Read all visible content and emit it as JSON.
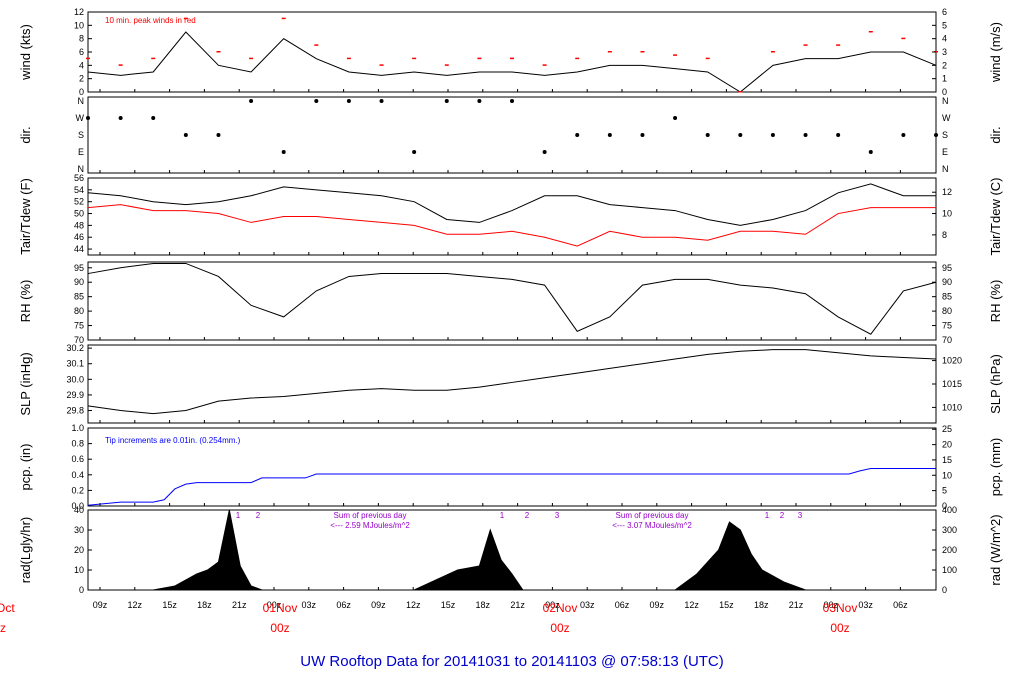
{
  "title": "UW Rooftop Data for 20141031  to  20141103 @ 07:58:13  (UTC)",
  "colors": {
    "frame": "#000000",
    "red": "#ff0000",
    "blue": "#0000ff",
    "purple": "#9900cc",
    "title": "#0000cc"
  },
  "chart_data": [
    {
      "type": "line",
      "name": "wind",
      "ylabel_left": "wind (kts)",
      "ylabel_right": "wind (m/s)",
      "ylim": [
        0,
        12
      ],
      "yticks_left": [
        "0",
        "2",
        "4",
        "6",
        "8",
        "10",
        "12"
      ],
      "yticks_right": [
        "0",
        "1",
        "2",
        "3",
        "4",
        "5",
        "6"
      ],
      "annotation": "10 min. peak winds in red",
      "series": [
        {
          "name": "wind speed",
          "x": [
            0,
            3,
            6,
            9,
            12,
            15,
            18,
            21,
            24,
            27,
            30,
            33,
            36,
            39,
            42,
            45,
            48,
            51,
            54,
            57,
            60,
            63,
            66,
            69,
            72,
            75,
            78
          ],
          "values": [
            3,
            2.5,
            3,
            9,
            4,
            3,
            8,
            5,
            3,
            2.5,
            3,
            2.5,
            3,
            3,
            2.5,
            3,
            4,
            4,
            3.5,
            3,
            0,
            4,
            5,
            5,
            6,
            6,
            4
          ]
        },
        {
          "name": "10 min peak",
          "x": [
            0,
            3,
            6,
            9,
            12,
            15,
            18,
            21,
            24,
            27,
            30,
            33,
            36,
            39,
            42,
            45,
            48,
            51,
            54,
            57,
            60,
            63,
            66,
            69,
            72,
            75,
            78
          ],
          "values": [
            5,
            4,
            5,
            11,
            6,
            5,
            11,
            7,
            5,
            4,
            5,
            4,
            5,
            5,
            4,
            5,
            6,
            6,
            5.5,
            5,
            0,
            6,
            7,
            7,
            9,
            8,
            6
          ]
        }
      ]
    },
    {
      "type": "scatter",
      "name": "dir",
      "ylabel_left": "dir.",
      "ylabel_right": "dir.",
      "yticks": [
        "N",
        "W",
        "S",
        "E",
        "N"
      ],
      "series": [
        {
          "name": "direction",
          "x": [
            0,
            3,
            6,
            9,
            12,
            15,
            18,
            21,
            24,
            27,
            30,
            33,
            36,
            39,
            42,
            45,
            48,
            51,
            54,
            57,
            60,
            63,
            66,
            69,
            72,
            75,
            78
          ],
          "values": [
            "W",
            "W",
            "W",
            "S",
            "S",
            "N",
            "E",
            "N",
            "N",
            "N",
            "E",
            "N",
            "N",
            "N",
            "E",
            "S",
            "S",
            "S",
            "W",
            "S",
            "S",
            "S",
            "S",
            "S",
            "E",
            "S",
            "S"
          ]
        }
      ]
    },
    {
      "type": "line",
      "name": "temp",
      "ylabel_left": "Tair/Tdew (F)",
      "ylabel_right": "Tair/Tdew (C)",
      "ylim": [
        43,
        56
      ],
      "yticks_left": [
        "44",
        "46",
        "48",
        "50",
        "52",
        "54",
        "56"
      ],
      "yticks_right": [
        "8",
        "10",
        "12"
      ],
      "series": [
        {
          "name": "Tair",
          "x": [
            0,
            3,
            6,
            9,
            12,
            15,
            18,
            21,
            24,
            27,
            30,
            33,
            36,
            39,
            42,
            45,
            48,
            51,
            54,
            57,
            60,
            63,
            66,
            69,
            72,
            75,
            78
          ],
          "values": [
            53.5,
            53,
            52,
            51.5,
            52,
            53,
            54.5,
            54,
            53.5,
            53,
            52,
            49,
            48.5,
            50.5,
            53,
            53,
            51.5,
            51,
            50.5,
            49,
            48,
            49,
            50.5,
            53.5,
            55,
            53,
            53
          ]
        },
        {
          "name": "Tdew",
          "x": [
            0,
            3,
            6,
            9,
            12,
            15,
            18,
            21,
            24,
            27,
            30,
            33,
            36,
            39,
            42,
            45,
            48,
            51,
            54,
            57,
            60,
            63,
            66,
            69,
            72,
            75,
            78
          ],
          "values": [
            51,
            51.5,
            50.5,
            50.5,
            50,
            48.5,
            49.5,
            49.5,
            49,
            48.5,
            48,
            46.5,
            46.5,
            47,
            46,
            44.5,
            47,
            46,
            46,
            45.5,
            47,
            47,
            46.5,
            50,
            51,
            51,
            51
          ]
        }
      ]
    },
    {
      "type": "line",
      "name": "rh",
      "ylabel_left": "RH (%)",
      "ylabel_right": "RH (%)",
      "ylim": [
        70,
        97
      ],
      "yticks": [
        "70",
        "75",
        "80",
        "85",
        "90",
        "95"
      ],
      "series": [
        {
          "name": "RH",
          "x": [
            0,
            3,
            6,
            9,
            12,
            15,
            18,
            21,
            24,
            27,
            30,
            33,
            36,
            39,
            42,
            45,
            48,
            51,
            54,
            57,
            60,
            63,
            66,
            69,
            72,
            75,
            78
          ],
          "values": [
            93,
            95,
            96.5,
            96.5,
            92,
            82,
            78,
            87,
            92,
            93,
            93,
            93,
            92,
            91,
            89,
            73,
            78,
            89,
            91,
            91,
            89,
            88,
            86,
            78,
            72,
            87,
            90
          ]
        }
      ]
    },
    {
      "type": "line",
      "name": "slp",
      "ylabel_left": "SLP (inHg)",
      "ylabel_right": "SLP (hPa)",
      "ylim": [
        29.72,
        30.22
      ],
      "yticks_left": [
        "29.8",
        "29.9",
        "30.0",
        "30.1",
        "30.2"
      ],
      "yticks_right": [
        "1010",
        "1015",
        "1020"
      ],
      "series": [
        {
          "name": "SLP",
          "x": [
            0,
            3,
            6,
            9,
            12,
            15,
            18,
            21,
            24,
            27,
            30,
            33,
            36,
            39,
            42,
            45,
            48,
            51,
            54,
            57,
            60,
            63,
            66,
            69,
            72,
            75,
            78
          ],
          "values": [
            29.83,
            29.8,
            29.78,
            29.8,
            29.86,
            29.88,
            29.89,
            29.91,
            29.93,
            29.94,
            29.93,
            29.93,
            29.95,
            29.98,
            30.01,
            30.04,
            30.07,
            30.1,
            30.13,
            30.16,
            30.18,
            30.19,
            30.19,
            30.17,
            30.15,
            30.14,
            30.13
          ]
        }
      ]
    },
    {
      "type": "line",
      "name": "pcp",
      "ylabel_left": "pcp. (in)",
      "ylabel_right": "pcp. (mm)",
      "ylim": [
        0,
        1.0
      ],
      "yticks_left": [
        "0.0",
        "0.2",
        "0.4",
        "0.6",
        "0.8",
        "1.0"
      ],
      "yticks_right": [
        "0",
        "5",
        "10",
        "15",
        "20",
        "25"
      ],
      "annotation": "Tip increments are 0.01in. (0.254mm.)",
      "series": [
        {
          "name": "cumulative precip",
          "x": [
            0,
            3,
            6,
            7,
            8,
            9,
            10,
            15,
            16,
            20,
            21,
            30,
            40,
            50,
            60,
            70,
            71,
            72,
            78
          ],
          "values": [
            0.01,
            0.05,
            0.05,
            0.08,
            0.22,
            0.28,
            0.3,
            0.3,
            0.36,
            0.36,
            0.41,
            0.41,
            0.41,
            0.41,
            0.41,
            0.41,
            0.45,
            0.48,
            0.48
          ]
        }
      ]
    },
    {
      "type": "area",
      "name": "rad",
      "ylabel_left": "rad(Lgly/hr)",
      "ylabel_right": "rad (W/m^2)",
      "ylim": [
        0,
        40
      ],
      "yticks_left": [
        "0",
        "10",
        "20",
        "30",
        "40"
      ],
      "yticks_right": [
        "0",
        "100",
        "200",
        "300",
        "400"
      ],
      "annotations": [
        {
          "text": "Sum of previous day",
          "text2": "<--- 2.59 MJoules/m^2"
        },
        {
          "text": "Sum of previous day",
          "text2": "<--- 3.07 MJoules/m^2"
        }
      ],
      "markers": [
        "1",
        "2",
        "1",
        "2",
        "3",
        "1",
        "2",
        "3"
      ],
      "series": [
        {
          "name": "solar",
          "x": [
            6,
            8,
            10,
            11,
            12,
            13,
            14,
            15,
            16,
            30,
            32,
            34,
            36,
            37,
            38,
            39,
            40,
            54,
            56,
            58,
            59,
            60,
            61,
            62,
            64,
            66
          ],
          "values": [
            0,
            2,
            8,
            10,
            14,
            40,
            12,
            2,
            0,
            0,
            5,
            10,
            12,
            30,
            15,
            8,
            0,
            0,
            8,
            20,
            34,
            30,
            18,
            10,
            4,
            0
          ]
        }
      ]
    },
    {
      "type": "table",
      "name": "time-axis",
      "xticks": [
        "09z",
        "12z",
        "15z",
        "18z",
        "21z",
        "00z",
        "03z",
        "06z",
        "09z",
        "12z",
        "15z",
        "18z",
        "21z",
        "00z",
        "03z",
        "06z",
        "09z",
        "12z",
        "15z",
        "18z",
        "21z",
        "00z",
        "03z",
        "06z"
      ],
      "day_labels": [
        {
          "date": "01Nov",
          "hour": "00z"
        },
        {
          "date": "02Nov",
          "hour": "00z"
        },
        {
          "date": "03Nov",
          "hour": "00z"
        }
      ],
      "left_clipped": {
        "date": "Oct",
        "hour": "z"
      }
    }
  ]
}
